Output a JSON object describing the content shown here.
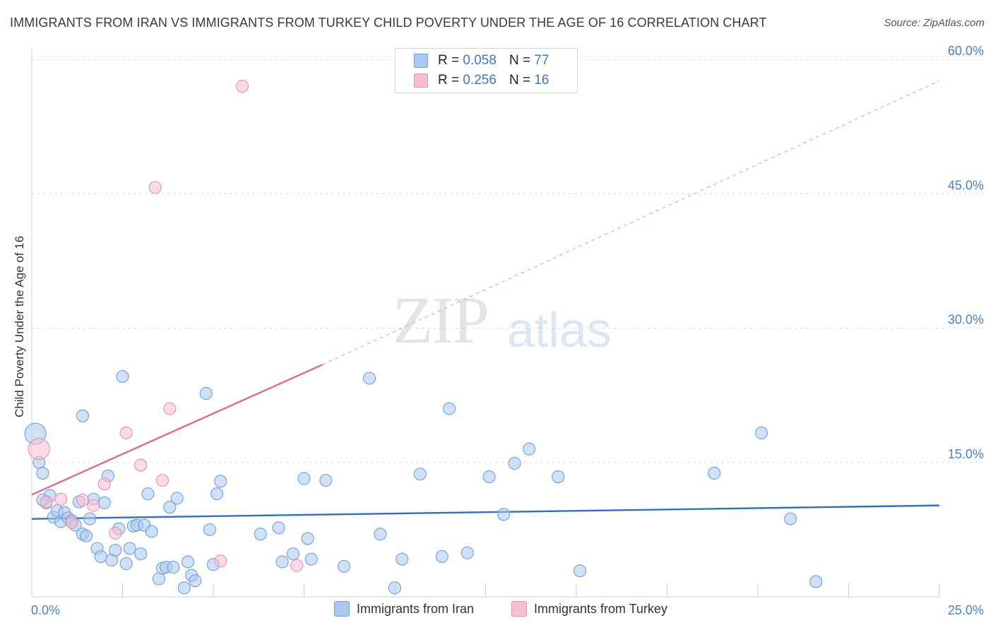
{
  "title": "IMMIGRANTS FROM IRAN VS IMMIGRANTS FROM TURKEY CHILD POVERTY UNDER THE AGE OF 16 CORRELATION CHART",
  "source": "Source: ZipAtlas.com",
  "watermark": {
    "zip": "ZIP",
    "atlas": "atlas"
  },
  "legend": {
    "iran": {
      "r_label": "R =",
      "r_value": "0.058",
      "n_label": "N =",
      "n_value": "77"
    },
    "turkey": {
      "r_label": "R =",
      "r_value": "0.256",
      "n_label": "N =",
      "n_value": "16"
    }
  },
  "bottom_legend": {
    "iran": "Immigrants from Iran",
    "turkey": "Immigrants from Turkey"
  },
  "colors": {
    "iran_fill": "#aac8f0",
    "iran_stroke": "#6e9fdc",
    "iran_line": "#2a6fcf",
    "turkey_fill": "#f8c0cf",
    "turkey_stroke": "#ea8fab",
    "turkey_line": "#e2688f",
    "tick": "#4a7fd0"
  },
  "chart_data": {
    "type": "scatter",
    "title": "IMMIGRANTS FROM IRAN VS IMMIGRANTS FROM TURKEY CHILD POVERTY UNDER THE AGE OF 16 CORRELATION CHART",
    "xlabel": "",
    "ylabel": "Child Poverty Under the Age of 16",
    "xlim": [
      0,
      25
    ],
    "ylim": [
      0,
      60
    ],
    "x_tick_labels": [
      "0.0%",
      "25.0%"
    ],
    "y_ticks": [
      15,
      30,
      45,
      60
    ],
    "y_tick_labels": [
      "15.0%",
      "30.0%",
      "45.0%",
      "60.0%"
    ],
    "series": [
      {
        "name": "Immigrants from Iran",
        "points": [
          [
            0.1,
            18.2
          ],
          [
            0.2,
            15.0
          ],
          [
            0.3,
            13.8
          ],
          [
            0.4,
            10.5
          ],
          [
            0.5,
            11.3
          ],
          [
            0.6,
            8.9
          ],
          [
            0.7,
            9.6
          ],
          [
            0.8,
            8.4
          ],
          [
            0.9,
            9.4
          ],
          [
            1.0,
            8.8
          ],
          [
            1.1,
            8.5
          ],
          [
            1.2,
            8.0
          ],
          [
            1.3,
            10.6
          ],
          [
            1.4,
            7.0
          ],
          [
            1.5,
            6.8
          ],
          [
            1.4,
            20.2
          ],
          [
            1.6,
            8.7
          ],
          [
            1.7,
            10.9
          ],
          [
            1.8,
            5.4
          ],
          [
            1.9,
            4.5
          ],
          [
            2.0,
            10.5
          ],
          [
            2.1,
            13.5
          ],
          [
            2.2,
            4.1
          ],
          [
            2.3,
            5.2
          ],
          [
            2.4,
            7.6
          ],
          [
            2.5,
            24.6
          ],
          [
            2.6,
            3.7
          ],
          [
            2.7,
            5.4
          ],
          [
            2.8,
            7.9
          ],
          [
            2.9,
            8.0
          ],
          [
            3.0,
            4.8
          ],
          [
            3.1,
            8.0
          ],
          [
            3.2,
            11.5
          ],
          [
            3.3,
            7.3
          ],
          [
            3.5,
            2.0
          ],
          [
            3.6,
            3.2
          ],
          [
            3.7,
            3.3
          ],
          [
            3.8,
            10.0
          ],
          [
            3.9,
            3.3
          ],
          [
            4.0,
            11.0
          ],
          [
            4.2,
            1.0
          ],
          [
            4.3,
            3.9
          ],
          [
            4.4,
            2.4
          ],
          [
            4.5,
            1.8
          ],
          [
            4.8,
            22.7
          ],
          [
            4.9,
            7.5
          ],
          [
            5.0,
            3.6
          ],
          [
            5.1,
            11.5
          ],
          [
            5.2,
            12.9
          ],
          [
            6.3,
            7.0
          ],
          [
            6.8,
            7.7
          ],
          [
            6.9,
            3.9
          ],
          [
            7.2,
            4.8
          ],
          [
            7.5,
            13.2
          ],
          [
            7.6,
            6.5
          ],
          [
            7.7,
            4.2
          ],
          [
            8.1,
            13.0
          ],
          [
            8.6,
            3.4
          ],
          [
            9.3,
            24.4
          ],
          [
            9.6,
            7.0
          ],
          [
            10.0,
            1.0
          ],
          [
            10.2,
            4.2
          ],
          [
            10.7,
            13.7
          ],
          [
            11.3,
            4.5
          ],
          [
            11.5,
            21.0
          ],
          [
            12.0,
            4.9
          ],
          [
            12.6,
            13.4
          ],
          [
            13.0,
            9.2
          ],
          [
            13.3,
            14.9
          ],
          [
            13.7,
            16.5
          ],
          [
            14.5,
            13.4
          ],
          [
            15.1,
            2.9
          ],
          [
            18.8,
            13.8
          ],
          [
            20.1,
            18.3
          ],
          [
            20.9,
            8.7
          ],
          [
            21.6,
            1.7
          ],
          [
            0.3,
            10.8
          ]
        ]
      },
      {
        "name": "Immigrants from Turkey",
        "points": [
          [
            0.2,
            16.5
          ],
          [
            0.4,
            10.6
          ],
          [
            0.8,
            10.9
          ],
          [
            1.1,
            8.3
          ],
          [
            1.4,
            10.8
          ],
          [
            1.7,
            10.2
          ],
          [
            2.0,
            12.6
          ],
          [
            2.3,
            7.1
          ],
          [
            2.6,
            18.3
          ],
          [
            3.0,
            14.7
          ],
          [
            3.4,
            45.7
          ],
          [
            3.6,
            13.0
          ],
          [
            3.8,
            21.0
          ],
          [
            5.2,
            4.0
          ],
          [
            5.8,
            57.0
          ],
          [
            7.3,
            3.5
          ]
        ]
      }
    ],
    "trend_lines": [
      {
        "series": "Immigrants from Iran",
        "x": [
          0,
          25
        ],
        "y": [
          8.7,
          10.2
        ],
        "style": "solid"
      },
      {
        "series": "Immigrants from Turkey",
        "x": [
          0,
          8.0
        ],
        "y": [
          11.4,
          25.9
        ],
        "style": "solid"
      },
      {
        "series": "Immigrants from Turkey",
        "x": [
          8.0,
          25
        ],
        "y": [
          25.9,
          57.6
        ],
        "style": "dashed"
      }
    ]
  }
}
